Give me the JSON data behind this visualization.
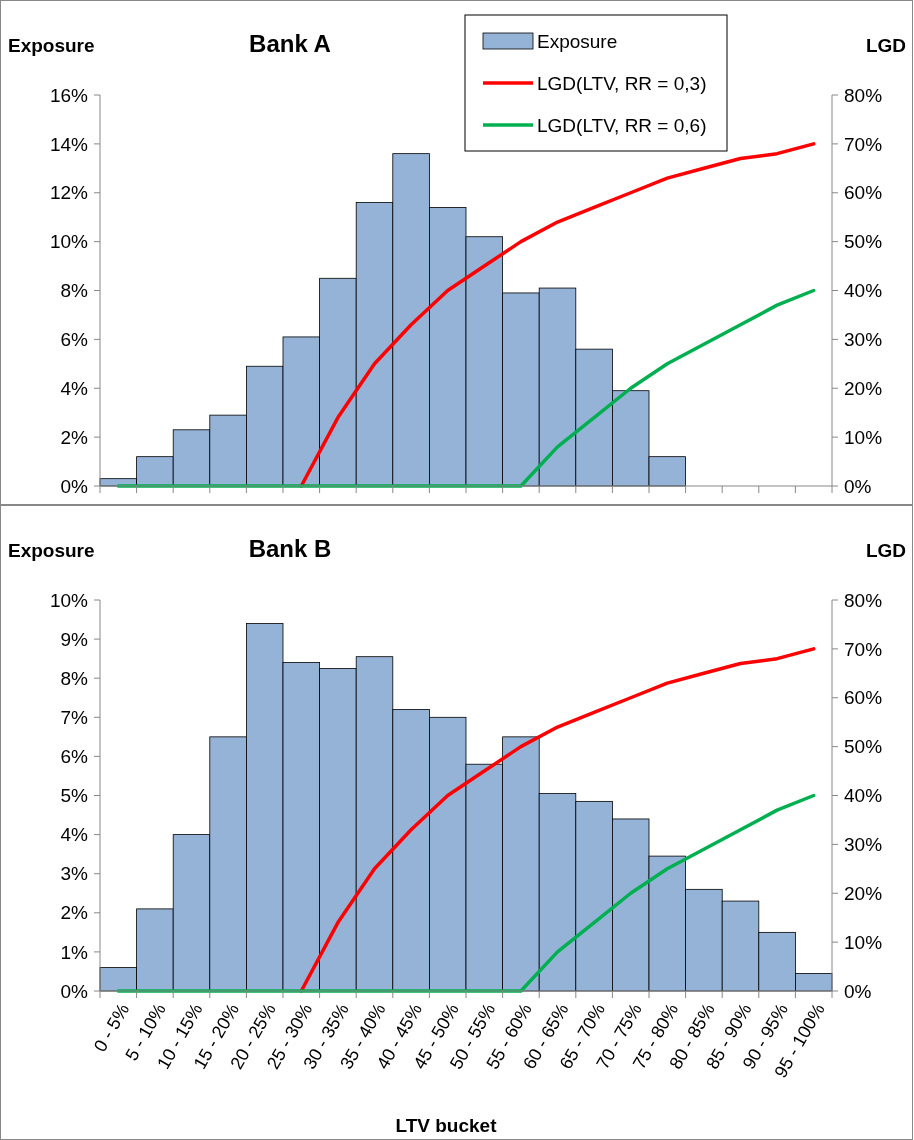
{
  "chart_data": [
    {
      "type": "bar",
      "title": "Bank A",
      "ylabel": "Exposure",
      "y2label": "LGD",
      "tick_labels": "y",
      "legend": "top right",
      "grid": false,
      "categories": [
        null,
        null,
        null,
        null,
        null,
        null,
        null,
        null,
        null,
        null,
        null,
        null,
        null,
        null,
        null,
        null,
        null,
        null,
        null,
        null
      ],
      "ylim": [
        0,
        16
      ],
      "yticks": [
        {
          "value": 0,
          "label": "0%"
        },
        {
          "value": 2,
          "label": "2%"
        },
        {
          "value": 4,
          "label": "4%"
        },
        {
          "value": 6,
          "label": "6%"
        },
        {
          "value": 8,
          "label": "8%"
        },
        {
          "value": 10,
          "label": "10%"
        },
        {
          "value": 12,
          "label": "12%"
        },
        {
          "value": 14,
          "label": "14%"
        },
        {
          "value": 16,
          "label": "16%"
        }
      ],
      "y2lim": [
        0,
        80
      ],
      "y2ticks": [
        {
          "value": 0,
          "label": "0%"
        },
        {
          "value": 10,
          "label": "10%"
        },
        {
          "value": 20,
          "label": "20%"
        },
        {
          "value": 30,
          "label": "30%"
        },
        {
          "value": 40,
          "label": "40%"
        },
        {
          "value": 50,
          "label": "50%"
        },
        {
          "value": 60,
          "label": "60%"
        },
        {
          "value": 70,
          "label": "70%"
        },
        {
          "value": 80,
          "label": "80%"
        }
      ],
      "series": [
        {
          "name": "Exposure",
          "color": "#95b3d7",
          "values": [
            0.3,
            1.2,
            2.3,
            2.9,
            4.9,
            6.1,
            8.5,
            11.6,
            13.6,
            11.4,
            10.2,
            7.9,
            8.1,
            5.6,
            3.9,
            1.2,
            0,
            0,
            0,
            0
          ]
        },
        {
          "type": "line",
          "axis": "y2",
          "name": "LGD(LTV, RR = 0,3)",
          "color": "#ff0000",
          "values": [
            null,
            null,
            null,
            null,
            null,
            0,
            14,
            25,
            33,
            40,
            45,
            50,
            54,
            57,
            60,
            63,
            65,
            67,
            68,
            70
          ]
        },
        {
          "type": "line",
          "axis": "y2",
          "name": "LGD(LTV, RR = 0,6)",
          "color": "#00b050",
          "values": [
            0,
            0,
            0,
            0,
            0,
            0,
            0,
            0,
            0,
            0,
            0,
            0,
            8,
            14,
            20,
            25,
            29,
            33,
            37,
            40
          ]
        }
      ]
    },
    {
      "type": "bar",
      "title": "Bank B",
      "ylabel": "Exposure",
      "y2label": "LGD",
      "xlabel": "LTV bucket",
      "grid": false,
      "categories": [
        "0 - 5%",
        "5 - 10%",
        "10 - 15%",
        "15 - 20%",
        "20 - 25%",
        "25 - 30%",
        "30 - 35%",
        "35 - 40%",
        "40 - 45%",
        "45 - 50%",
        "50 - 55%",
        "55 - 60%",
        "60 - 65%",
        "65 - 70%",
        "70 - 75%",
        "75 - 80%",
        "80 - 85%",
        "85 - 90%",
        "90 - 95%",
        "95 - 100%"
      ],
      "ylim": [
        0,
        10
      ],
      "yticks": [
        {
          "value": 0,
          "label": "0%"
        },
        {
          "value": 1,
          "label": "1%"
        },
        {
          "value": 2,
          "label": "2%"
        },
        {
          "value": 3,
          "label": "3%"
        },
        {
          "value": 4,
          "label": "4%"
        },
        {
          "value": 5,
          "label": "5%"
        },
        {
          "value": 6,
          "label": "6%"
        },
        {
          "value": 7,
          "label": "7%"
        },
        {
          "value": 8,
          "label": "8%"
        },
        {
          "value": 9,
          "label": "9%"
        },
        {
          "value": 10,
          "label": "10%"
        }
      ],
      "y2lim": [
        0,
        80
      ],
      "y2ticks": [
        {
          "value": 0,
          "label": "0%"
        },
        {
          "value": 10,
          "label": "10%"
        },
        {
          "value": 20,
          "label": "20%"
        },
        {
          "value": 30,
          "label": "30%"
        },
        {
          "value": 40,
          "label": "40%"
        },
        {
          "value": 50,
          "label": "50%"
        },
        {
          "value": 60,
          "label": "60%"
        },
        {
          "value": 70,
          "label": "70%"
        },
        {
          "value": 80,
          "label": "80%"
        }
      ],
      "series": [
        {
          "color": "#95b3d7",
          "values": [
            0.6,
            2.1,
            4.0,
            6.5,
            9.4,
            8.4,
            8.25,
            8.55,
            7.2,
            7.0,
            5.8,
            6.5,
            5.05,
            4.85,
            4.4,
            3.45,
            2.6,
            2.3,
            1.5,
            0.45
          ]
        },
        {
          "type": "line",
          "axis": "y2",
          "color": "#ff0000",
          "values": [
            null,
            null,
            null,
            null,
            null,
            0,
            14,
            25,
            33,
            40,
            45,
            50,
            54,
            57,
            60,
            63,
            65,
            67,
            68,
            70
          ]
        },
        {
          "type": "line",
          "axis": "y2",
          "color": "#00b050",
          "values": [
            0,
            0,
            0,
            0,
            0,
            0,
            0,
            0,
            0,
            0,
            0,
            0,
            8,
            14,
            20,
            25,
            29,
            33,
            37,
            40
          ]
        }
      ]
    }
  ]
}
